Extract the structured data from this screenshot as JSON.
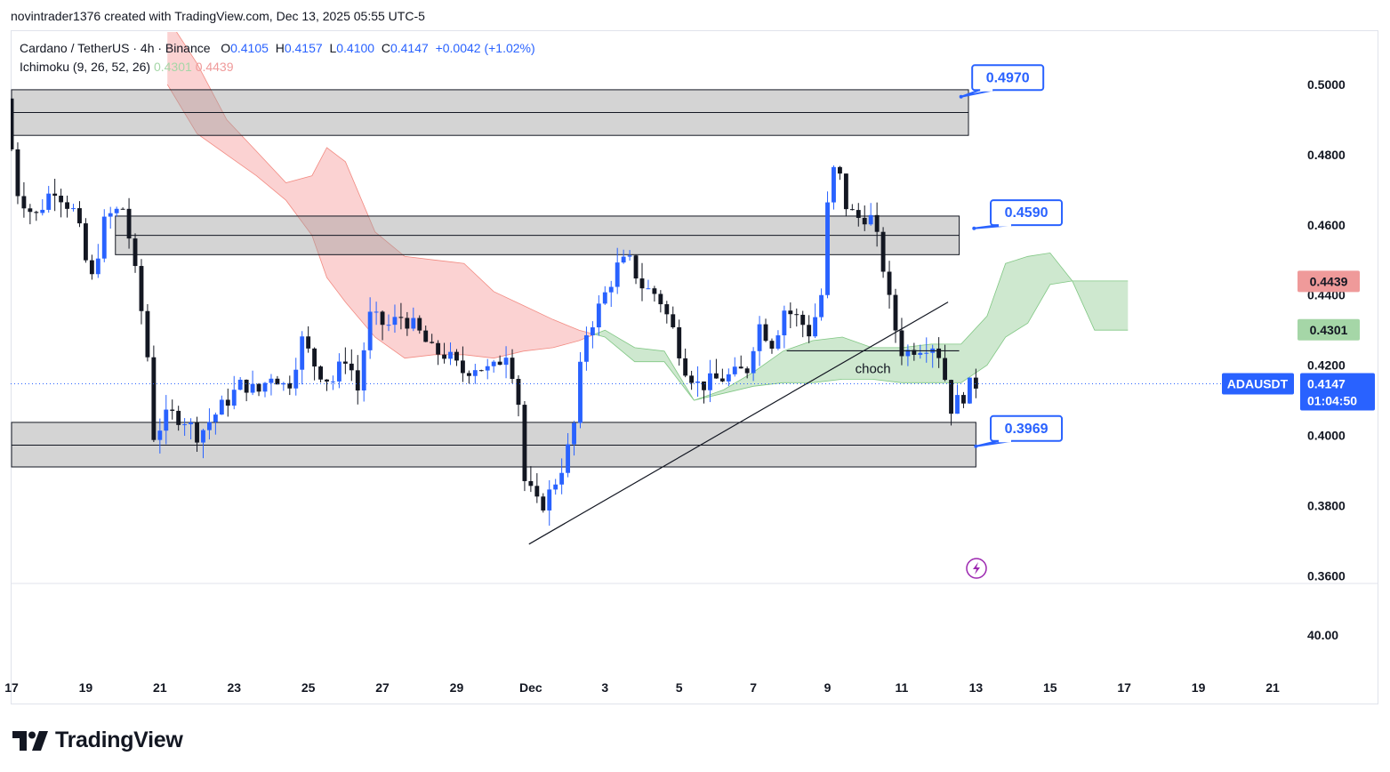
{
  "credit": "novintrader1376 created with TradingView.com, Dec 13, 2025 05:55 UTC-5",
  "legend": {
    "symbol": "Cardano / TetherUS · 4h · Binance",
    "o_label": "O",
    "o_value": "0.4105",
    "h_label": "H",
    "h_value": "0.4157",
    "l_label": "L",
    "l_value": "0.4100",
    "c_label": "C",
    "c_value": "0.4147",
    "change": "+0.0042 (+1.02%)",
    "indicator": "Ichimoku (9, 26, 52, 26)",
    "ind_value1": "0.4301",
    "ind_value2": "0.4439"
  },
  "brand": "TradingView",
  "colors": {
    "up": "#2962ff",
    "down": "#131722",
    "cloud_bull": "#a5d6a7",
    "cloud_bear": "#f8a5a5",
    "tag_red": "#ef9a9a",
    "tag_green": "#a5d6a7",
    "symbol_tag": "#2962ff"
  },
  "chart_data": {
    "type": "candlestick",
    "symbol": "ADAUSDT",
    "last_price": "0.4147",
    "countdown": "01:04:50",
    "ylim": [
      0.355,
      0.515
    ],
    "y_ticks": [
      {
        "v": 0.5,
        "label": "0.5000"
      },
      {
        "v": 0.48,
        "label": "0.4800"
      },
      {
        "v": 0.46,
        "label": "0.4600"
      },
      {
        "v": 0.44,
        "label": "0.4400"
      },
      {
        "v": 0.42,
        "label": "0.4200"
      },
      {
        "v": 0.4,
        "label": "0.4000"
      },
      {
        "v": 0.38,
        "label": "0.3800"
      },
      {
        "v": 0.36,
        "label": "0.3600"
      }
    ],
    "lower_pane_tick": "40.00",
    "x_range": [
      17,
      58
    ],
    "x_ticks": [
      {
        "t": 17,
        "label": "17",
        "bold": false
      },
      {
        "t": 19,
        "label": "19",
        "bold": false
      },
      {
        "t": 21,
        "label": "21",
        "bold": false
      },
      {
        "t": 23,
        "label": "23",
        "bold": false
      },
      {
        "t": 25,
        "label": "25",
        "bold": false
      },
      {
        "t": 27,
        "label": "27",
        "bold": false
      },
      {
        "t": 29,
        "label": "29",
        "bold": false
      },
      {
        "t": 31,
        "label": "Dec",
        "bold": true
      },
      {
        "t": 33,
        "label": "3",
        "bold": false
      },
      {
        "t": 35,
        "label": "5",
        "bold": false
      },
      {
        "t": 37,
        "label": "7",
        "bold": false
      },
      {
        "t": 39,
        "label": "9",
        "bold": false
      },
      {
        "t": 41,
        "label": "11",
        "bold": false
      },
      {
        "t": 43,
        "label": "13",
        "bold": false
      },
      {
        "t": 45,
        "label": "15",
        "bold": false
      },
      {
        "t": 47,
        "label": "17",
        "bold": false
      },
      {
        "t": 49,
        "label": "19",
        "bold": false
      },
      {
        "t": 51,
        "label": "21",
        "bold": false
      }
    ],
    "anchors": [
      {
        "t": 17.0,
        "p": 0.496
      },
      {
        "t": 17.3,
        "p": 0.47
      },
      {
        "t": 17.8,
        "p": 0.462
      },
      {
        "t": 18.3,
        "p": 0.471
      },
      {
        "t": 18.9,
        "p": 0.463
      },
      {
        "t": 19.3,
        "p": 0.443
      },
      {
        "t": 19.7,
        "p": 0.462
      },
      {
        "t": 20.2,
        "p": 0.465
      },
      {
        "t": 20.5,
        "p": 0.446
      },
      {
        "t": 20.8,
        "p": 0.427
      },
      {
        "t": 21.0,
        "p": 0.4
      },
      {
        "t": 21.4,
        "p": 0.406
      },
      {
        "t": 21.8,
        "p": 0.405
      },
      {
        "t": 22.2,
        "p": 0.4
      },
      {
        "t": 22.5,
        "p": 0.404
      },
      {
        "t": 22.9,
        "p": 0.409
      },
      {
        "t": 23.4,
        "p": 0.415
      },
      {
        "t": 23.8,
        "p": 0.412
      },
      {
        "t": 24.2,
        "p": 0.418
      },
      {
        "t": 24.6,
        "p": 0.413
      },
      {
        "t": 25.0,
        "p": 0.427
      },
      {
        "t": 25.4,
        "p": 0.419
      },
      {
        "t": 25.8,
        "p": 0.415
      },
      {
        "t": 26.2,
        "p": 0.423
      },
      {
        "t": 26.5,
        "p": 0.413
      },
      {
        "t": 26.8,
        "p": 0.434
      },
      {
        "t": 27.3,
        "p": 0.431
      },
      {
        "t": 27.7,
        "p": 0.434
      },
      {
        "t": 28.1,
        "p": 0.43
      },
      {
        "t": 28.5,
        "p": 0.424
      },
      {
        "t": 28.9,
        "p": 0.423
      },
      {
        "t": 29.3,
        "p": 0.418
      },
      {
        "t": 29.7,
        "p": 0.42
      },
      {
        "t": 30.1,
        "p": 0.418
      },
      {
        "t": 30.5,
        "p": 0.424
      },
      {
        "t": 30.8,
        "p": 0.414
      },
      {
        "t": 31.0,
        "p": 0.387
      },
      {
        "t": 31.4,
        "p": 0.379
      },
      {
        "t": 31.7,
        "p": 0.384
      },
      {
        "t": 32.0,
        "p": 0.391
      },
      {
        "t": 32.3,
        "p": 0.4
      },
      {
        "t": 32.6,
        "p": 0.428
      },
      {
        "t": 32.9,
        "p": 0.434
      },
      {
        "t": 33.2,
        "p": 0.441
      },
      {
        "t": 33.5,
        "p": 0.448
      },
      {
        "t": 33.8,
        "p": 0.45
      },
      {
        "t": 34.2,
        "p": 0.442
      },
      {
        "t": 34.6,
        "p": 0.44
      },
      {
        "t": 35.0,
        "p": 0.43
      },
      {
        "t": 35.3,
        "p": 0.42
      },
      {
        "t": 35.7,
        "p": 0.414
      },
      {
        "t": 36.2,
        "p": 0.416
      },
      {
        "t": 36.6,
        "p": 0.417
      },
      {
        "t": 37.0,
        "p": 0.419
      },
      {
        "t": 37.3,
        "p": 0.432
      },
      {
        "t": 37.7,
        "p": 0.426
      },
      {
        "t": 38.0,
        "p": 0.436
      },
      {
        "t": 38.4,
        "p": 0.433
      },
      {
        "t": 38.7,
        "p": 0.429
      },
      {
        "t": 39.0,
        "p": 0.44
      },
      {
        "t": 39.2,
        "p": 0.47
      },
      {
        "t": 39.4,
        "p": 0.478
      },
      {
        "t": 39.7,
        "p": 0.464
      },
      {
        "t": 40.0,
        "p": 0.462
      },
      {
        "t": 40.3,
        "p": 0.463
      },
      {
        "t": 40.6,
        "p": 0.452
      },
      {
        "t": 40.9,
        "p": 0.434
      },
      {
        "t": 41.2,
        "p": 0.423
      },
      {
        "t": 41.5,
        "p": 0.425
      },
      {
        "t": 41.8,
        "p": 0.426
      },
      {
        "t": 42.1,
        "p": 0.426
      },
      {
        "t": 42.3,
        "p": 0.418
      },
      {
        "t": 42.5,
        "p": 0.408
      },
      {
        "t": 42.8,
        "p": 0.411
      },
      {
        "t": 43.05,
        "p": 0.4147
      }
    ],
    "cloud": [
      {
        "t": 21.2,
        "a": 0.519,
        "b": 0.5
      },
      {
        "t": 22.0,
        "a": 0.506,
        "b": 0.486
      },
      {
        "t": 22.8,
        "a": 0.49,
        "b": 0.48
      },
      {
        "t": 23.6,
        "a": 0.481,
        "b": 0.474
      },
      {
        "t": 24.4,
        "a": 0.472,
        "b": 0.467
      },
      {
        "t": 25.1,
        "a": 0.474,
        "b": 0.457
      },
      {
        "t": 25.5,
        "a": 0.482,
        "b": 0.445
      },
      {
        "t": 26.0,
        "a": 0.478,
        "b": 0.438
      },
      {
        "t": 26.8,
        "a": 0.458,
        "b": 0.428
      },
      {
        "t": 27.6,
        "a": 0.451,
        "b": 0.422
      },
      {
        "t": 28.4,
        "a": 0.45,
        "b": 0.423
      },
      {
        "t": 29.2,
        "a": 0.449,
        "b": 0.423
      },
      {
        "t": 30.0,
        "a": 0.441,
        "b": 0.422
      },
      {
        "t": 30.8,
        "a": 0.437,
        "b": 0.424
      },
      {
        "t": 31.6,
        "a": 0.433,
        "b": 0.425
      },
      {
        "t": 32.3,
        "a": 0.43,
        "b": 0.427
      },
      {
        "t": 33.0,
        "a": 0.428,
        "b": 0.43
      },
      {
        "t": 33.8,
        "a": 0.421,
        "b": 0.425
      },
      {
        "t": 34.6,
        "a": 0.421,
        "b": 0.424
      },
      {
        "t": 35.4,
        "a": 0.41,
        "b": 0.41
      },
      {
        "t": 36.2,
        "a": 0.412,
        "b": 0.413
      },
      {
        "t": 37.0,
        "a": 0.414,
        "b": 0.418
      },
      {
        "t": 37.8,
        "a": 0.415,
        "b": 0.424
      },
      {
        "t": 38.6,
        "a": 0.415,
        "b": 0.427
      },
      {
        "t": 39.4,
        "a": 0.416,
        "b": 0.428
      },
      {
        "t": 40.2,
        "a": 0.416,
        "b": 0.425
      },
      {
        "t": 41.0,
        "a": 0.415,
        "b": 0.425
      },
      {
        "t": 41.8,
        "a": 0.415,
        "b": 0.426
      },
      {
        "t": 42.6,
        "a": 0.415,
        "b": 0.426
      },
      {
        "t": 43.3,
        "a": 0.42,
        "b": 0.434
      },
      {
        "t": 43.8,
        "a": 0.428,
        "b": 0.449
      },
      {
        "t": 44.4,
        "a": 0.432,
        "b": 0.451
      },
      {
        "t": 45.0,
        "a": 0.443,
        "b": 0.452
      },
      {
        "t": 45.6,
        "a": 0.444,
        "b": 0.444
      },
      {
        "t": 46.2,
        "a": 0.43,
        "b": 0.444
      },
      {
        "t": 47.1,
        "a": 0.43,
        "b": 0.444
      }
    ],
    "zones": [
      {
        "t0": 17,
        "t1": 42.8,
        "p_top": 0.4985,
        "p_mid": 0.492,
        "p_bot": 0.4855
      },
      {
        "t0": 19.8,
        "t1": 42.55,
        "p_top": 0.4625,
        "p_mid": 0.457,
        "p_bot": 0.4515
      },
      {
        "t0": 17,
        "t1": 43.0,
        "p_top": 0.4037,
        "p_mid": 0.3972,
        "p_bot": 0.391
      }
    ],
    "trendline": {
      "t0": 30.95,
      "p0": 0.369,
      "t1": 42.25,
      "p1": 0.438
    },
    "choch": {
      "label": "choch",
      "t0": 37.9,
      "t1": 42.55,
      "p": 0.4241
    },
    "callouts": [
      {
        "label": "0.4970",
        "t_box": 42.9,
        "p_box": 0.5055,
        "t_pt": 42.6,
        "p_pt": 0.4965
      },
      {
        "label": "0.4590",
        "t_box": 43.4,
        "p_box": 0.467,
        "t_pt": 42.95,
        "p_pt": 0.459
      },
      {
        "label": "0.3969",
        "t_box": 43.4,
        "p_box": 0.4055,
        "t_pt": 43.0,
        "p_pt": 0.3969
      }
    ],
    "price_tags": [
      {
        "label": "0.4439",
        "p": 0.4439,
        "color": "#ef9a9a",
        "text": "#131722"
      },
      {
        "label": "0.4301",
        "p": 0.4301,
        "color": "#a5d6a7",
        "text": "#131722"
      }
    ]
  }
}
